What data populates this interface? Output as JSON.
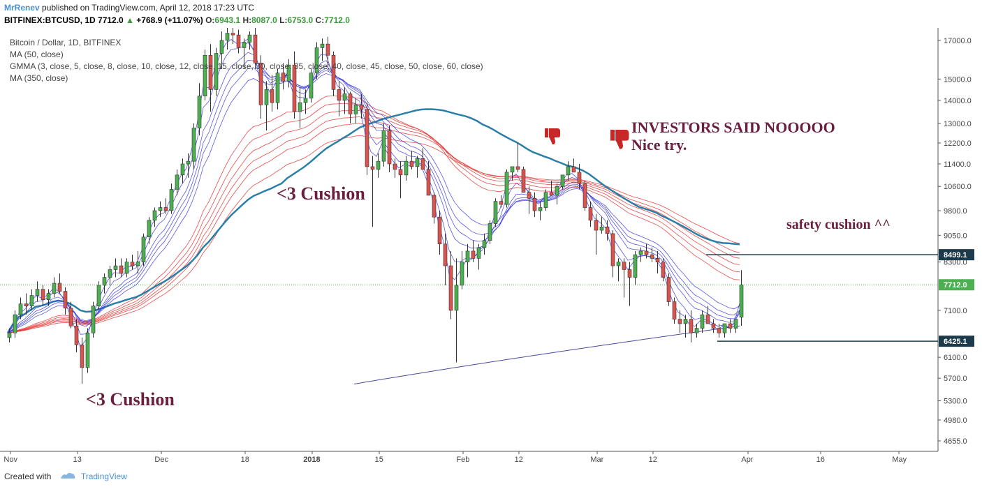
{
  "header": {
    "author": "MrRenev",
    "published": "published on TradingView.com, April 12, 2018 17:23 UTC",
    "symbol": "BITFINEX:BTCUSD, 1D",
    "last": "7712.0",
    "change": "+768.9 (+11.07%)",
    "o_label": "O:",
    "o": "6943.1",
    "h_label": "H:",
    "h": "8087.0",
    "l_label": "L:",
    "l": "6753.0",
    "c_label": "C:",
    "c": "7712.0"
  },
  "legend": [
    "Bitcoin / Dollar, 1D, BITFINEX",
    "MA (50, close)",
    "GMMA (3, close, 5, close, 8, close, 10, close, 12, close, 15, close, 30, close, 35, close, 40, close, 45, close, 50, close, 60, close)",
    "MA (350, close)"
  ],
  "annotations": {
    "cushion_upper": "<3 Cushion",
    "cushion_lower": "<3 Cushion",
    "investors": "INVESTORS SAID NOOOOO",
    "nice_try": "Nice try.",
    "safety": "safety cushion ^^"
  },
  "footer": {
    "created_with": "Created with",
    "brand": "TradingView"
  },
  "colors": {
    "up": "#4caf50",
    "down": "#d9534f",
    "ma50": "#2a7fa8",
    "gmma_short": "#3a3ae0",
    "gmma_long": "#e53935",
    "ma350": "#4a4aa0",
    "annotation": "#6b1f3e"
  },
  "chart_data": {
    "type": "candlestick",
    "x_labels": [
      "Nov",
      "13",
      "Dec",
      "18",
      "2018",
      "15",
      "Feb",
      "12",
      "Mar",
      "12",
      "Apr",
      "16",
      "May"
    ],
    "y_ticks": [
      17000,
      15000,
      14000,
      13000,
      12200,
      11400,
      10600,
      9800,
      9050,
      8300,
      7100,
      6100,
      5700,
      5300,
      4980,
      4655
    ],
    "y_scale": "log",
    "y_range": [
      4500,
      17700
    ],
    "horizontal_levels": [
      {
        "label": "8499.1",
        "value": 8499.1
      },
      {
        "label": "6425.1",
        "value": 6425.1
      }
    ],
    "last_price": {
      "label": "7712.0",
      "value": 7712.0
    },
    "candles_ohlc": [
      [
        6500,
        6700,
        6400,
        6600
      ],
      [
        6600,
        7100,
        6500,
        7000
      ],
      [
        7000,
        7400,
        6900,
        7250
      ],
      [
        7250,
        7500,
        7000,
        7200
      ],
      [
        7200,
        7600,
        7100,
        7450
      ],
      [
        7450,
        7800,
        7300,
        7600
      ],
      [
        7600,
        7700,
        7200,
        7350
      ],
      [
        7350,
        7600,
        7200,
        7500
      ],
      [
        7500,
        7900,
        7400,
        7750
      ],
      [
        7750,
        8000,
        7500,
        7550
      ],
      [
        7550,
        7650,
        7000,
        7150
      ],
      [
        7150,
        7300,
        6700,
        6750
      ],
      [
        6750,
        6900,
        6200,
        6350
      ],
      [
        6350,
        6500,
        5600,
        5900
      ],
      [
        5900,
        6700,
        5800,
        6600
      ],
      [
        6600,
        7300,
        6500,
        7200
      ],
      [
        7200,
        7800,
        7100,
        7700
      ],
      [
        7700,
        8000,
        7500,
        7900
      ],
      [
        7900,
        8200,
        7700,
        8100
      ],
      [
        8100,
        8400,
        7900,
        8200
      ],
      [
        8200,
        8400,
        7900,
        8000
      ],
      [
        8000,
        8400,
        7900,
        8300
      ],
      [
        8300,
        8500,
        8100,
        8200
      ],
      [
        8200,
        8600,
        8000,
        8300
      ],
      [
        8300,
        9100,
        8200,
        9000
      ],
      [
        9000,
        9600,
        8800,
        9500
      ],
      [
        9500,
        9900,
        9300,
        9800
      ],
      [
        9800,
        10100,
        9600,
        9900
      ],
      [
        9900,
        10200,
        9700,
        9800
      ],
      [
        9800,
        10700,
        9700,
        10500
      ],
      [
        10500,
        11200,
        10300,
        11000
      ],
      [
        11000,
        11600,
        10700,
        11400
      ],
      [
        11400,
        11800,
        10900,
        11500
      ],
      [
        11500,
        13000,
        11200,
        12800
      ],
      [
        12800,
        14800,
        12500,
        14200
      ],
      [
        14200,
        16500,
        14000,
        16200
      ],
      [
        16200,
        16800,
        13500,
        14500
      ],
      [
        14500,
        16600,
        14200,
        16300
      ],
      [
        16300,
        17500,
        15500,
        17000
      ],
      [
        17000,
        17800,
        16500,
        17400
      ],
      [
        17400,
        17700,
        16800,
        17300
      ],
      [
        17300,
        17600,
        16300,
        16600
      ],
      [
        16600,
        17100,
        15500,
        16900
      ],
      [
        16900,
        17500,
        16500,
        17300
      ],
      [
        17300,
        17800,
        15500,
        15800
      ],
      [
        15800,
        16200,
        13200,
        13800
      ],
      [
        13800,
        14900,
        12700,
        14500
      ],
      [
        14500,
        15200,
        13500,
        13900
      ],
      [
        13900,
        15500,
        13600,
        15300
      ],
      [
        15300,
        15800,
        14500,
        14900
      ],
      [
        14900,
        16000,
        14600,
        15700
      ],
      [
        15700,
        16400,
        13200,
        13500
      ],
      [
        13500,
        14600,
        12800,
        13900
      ],
      [
        13900,
        14500,
        13400,
        14100
      ],
      [
        14100,
        15500,
        13900,
        15300
      ],
      [
        15300,
        16900,
        15000,
        16600
      ],
      [
        16600,
        17100,
        15900,
        16800
      ],
      [
        16800,
        17200,
        15600,
        16200
      ],
      [
        16200,
        16400,
        14200,
        14500
      ],
      [
        14500,
        14900,
        13300,
        14000
      ],
      [
        14000,
        14600,
        13400,
        14300
      ],
      [
        14300,
        14400,
        13000,
        13400
      ],
      [
        13400,
        14100,
        13000,
        13800
      ],
      [
        13800,
        14300,
        13200,
        13600
      ],
      [
        13600,
        13900,
        11000,
        11300
      ],
      [
        11300,
        11700,
        9300,
        11200
      ],
      [
        11200,
        11800,
        10900,
        11500
      ],
      [
        11500,
        13000,
        11300,
        12700
      ],
      [
        12700,
        12900,
        11100,
        11400
      ],
      [
        11400,
        11600,
        10900,
        11200
      ],
      [
        11200,
        11500,
        10200,
        11000
      ],
      [
        11000,
        11700,
        10800,
        11500
      ],
      [
        11500,
        11900,
        11200,
        11300
      ],
      [
        11300,
        11700,
        10900,
        11600
      ],
      [
        11600,
        12000,
        11300,
        11200
      ],
      [
        11200,
        11500,
        10500,
        10300
      ],
      [
        10300,
        10400,
        9400,
        9600
      ],
      [
        9600,
        9800,
        8500,
        8800
      ],
      [
        8800,
        9100,
        7700,
        8200
      ],
      [
        8200,
        8600,
        6900,
        7100
      ],
      [
        7100,
        8400,
        6000,
        7700
      ],
      [
        7700,
        8600,
        7600,
        8300
      ],
      [
        8300,
        8800,
        7900,
        8600
      ],
      [
        8600,
        8900,
        8300,
        8400
      ],
      [
        8400,
        8800,
        8100,
        8700
      ],
      [
        8700,
        9100,
        8500,
        8900
      ],
      [
        8900,
        9500,
        8800,
        9400
      ],
      [
        9400,
        10200,
        9300,
        10100
      ],
      [
        10100,
        10300,
        9900,
        10000
      ],
      [
        10000,
        11200,
        9900,
        11100
      ],
      [
        11100,
        11300,
        10800,
        11300
      ],
      [
        11300,
        12200,
        11100,
        11200
      ],
      [
        11200,
        11300,
        10700,
        10400
      ],
      [
        10400,
        10600,
        9700,
        10200
      ],
      [
        10200,
        10400,
        9600,
        9800
      ],
      [
        9800,
        10100,
        9500,
        9900
      ],
      [
        9900,
        10500,
        9800,
        10400
      ],
      [
        10400,
        10800,
        10300,
        10300
      ],
      [
        10300,
        10700,
        10000,
        10600
      ],
      [
        10600,
        11000,
        10500,
        11000
      ],
      [
        11000,
        11500,
        10800,
        11300
      ],
      [
        11300,
        11600,
        11200,
        11100
      ],
      [
        11100,
        11400,
        10500,
        10700
      ],
      [
        10700,
        10800,
        9800,
        9900
      ],
      [
        9900,
        10100,
        9300,
        9500
      ],
      [
        9500,
        9700,
        8500,
        9200
      ],
      [
        9200,
        9600,
        9100,
        9300
      ],
      [
        9300,
        9500,
        8900,
        9100
      ],
      [
        9100,
        9200,
        7900,
        8200
      ],
      [
        8200,
        8400,
        7800,
        8300
      ],
      [
        8300,
        8400,
        7400,
        8100
      ],
      [
        8100,
        8300,
        7200,
        7900
      ],
      [
        7900,
        8600,
        7700,
        8500
      ],
      [
        8500,
        8700,
        8300,
        8600
      ],
      [
        8600,
        8800,
        8400,
        8500
      ],
      [
        8500,
        8700,
        8300,
        8400
      ],
      [
        8400,
        8600,
        8000,
        8300
      ],
      [
        8300,
        8400,
        7800,
        7900
      ],
      [
        7900,
        8000,
        7200,
        7300
      ],
      [
        7300,
        7400,
        6800,
        6900
      ],
      [
        6900,
        7100,
        6600,
        6800
      ],
      [
        6800,
        7000,
        6500,
        6900
      ],
      [
        6900,
        7100,
        6400,
        6600
      ],
      [
        6600,
        6800,
        6500,
        6700
      ],
      [
        6700,
        7100,
        6600,
        7000
      ],
      [
        7000,
        7200,
        6800,
        6800
      ],
      [
        6800,
        6900,
        6600,
        6700
      ],
      [
        6700,
        6800,
        6500,
        6600
      ],
      [
        6600,
        6800,
        6500,
        6800
      ],
      [
        6800,
        6900,
        6600,
        6700
      ],
      [
        6700,
        6900,
        6600,
        6900
      ],
      [
        6943,
        8087,
        6753,
        7712
      ]
    ]
  }
}
